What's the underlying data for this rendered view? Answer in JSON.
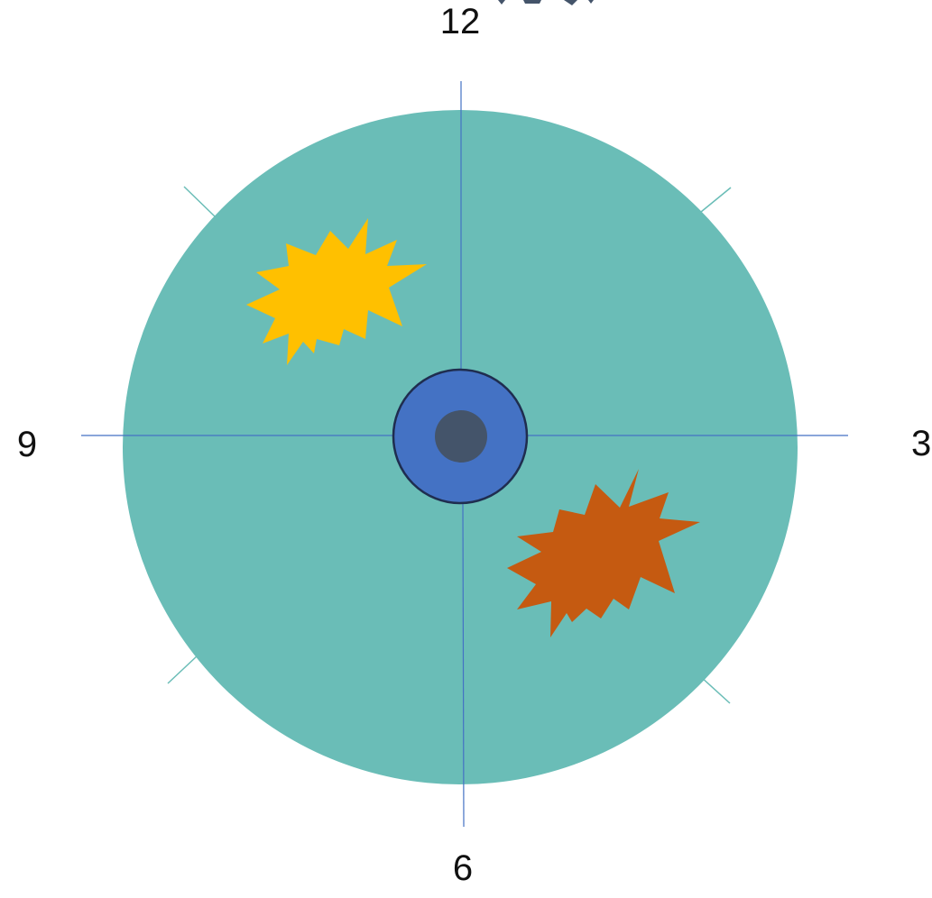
{
  "clock_labels": {
    "top": "12",
    "right": "3",
    "bottom": "6",
    "left": "9"
  },
  "colors": {
    "disc_fill": "#6abdb7",
    "axis_line": "#4472c4",
    "tick_line": "#6abdb7",
    "hub_outer_fill": "#4472c4",
    "hub_outer_stroke": "#1f2d4f",
    "hub_inner_fill": "#44546a",
    "burst_upper_left": "#ffc000",
    "burst_lower_right": "#c55a11",
    "label_text": "#111111",
    "background": "#ffffff"
  },
  "shapes": {
    "disc": "teal-disc",
    "hub": "blue-ring-with-dark-core",
    "bursts": [
      "explosion-yellow",
      "explosion-orange"
    ]
  }
}
